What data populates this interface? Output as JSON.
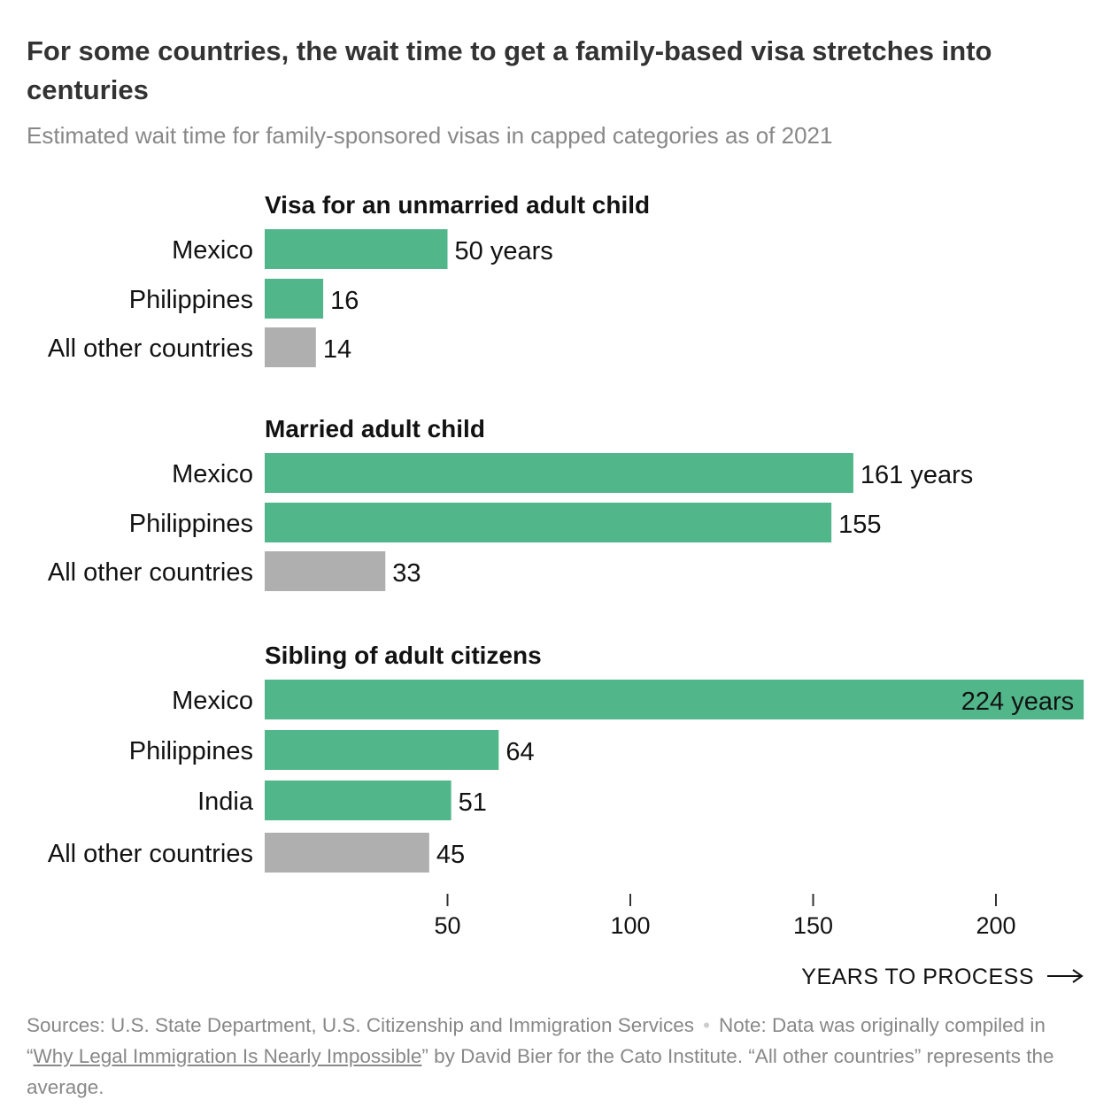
{
  "title": "For some countries, the wait time to get a family-based visa stretches into centuries",
  "subtitle": "Estimated wait time for family-sponsored visas in capped categories as of 2021",
  "chart_data": {
    "type": "bar",
    "orientation": "horizontal",
    "xlabel": "YEARS TO PROCESS",
    "xlim": [
      0,
      224
    ],
    "xticks": [
      50,
      100,
      150,
      200
    ],
    "unit_suffix": " years",
    "colors": {
      "country": "#52b68b",
      "average": "#afafaf"
    },
    "groups": [
      {
        "name": "Visa for an unmarried adult child",
        "bars": [
          {
            "label": "Mexico",
            "value": 50,
            "kind": "country",
            "value_label": "50 years"
          },
          {
            "label": "Philippines",
            "value": 16,
            "kind": "country",
            "value_label": "16"
          },
          {
            "label": "All other countries",
            "value": 14,
            "kind": "average",
            "value_label": "14"
          }
        ]
      },
      {
        "name": "Married adult child",
        "bars": [
          {
            "label": "Mexico",
            "value": 161,
            "kind": "country",
            "value_label": "161 years"
          },
          {
            "label": "Philippines",
            "value": 155,
            "kind": "country",
            "value_label": "155"
          },
          {
            "label": "All other countries",
            "value": 33,
            "kind": "average",
            "value_label": "33"
          }
        ]
      },
      {
        "name": "Sibling of adult citizens",
        "bars": [
          {
            "label": "Mexico",
            "value": 224,
            "kind": "country",
            "value_label": "224 years"
          },
          {
            "label": "Philippines",
            "value": 64,
            "kind": "country",
            "value_label": "64"
          },
          {
            "label": "India",
            "value": 51,
            "kind": "country",
            "value_label": "51"
          },
          {
            "label": "All other countries",
            "value": 45,
            "kind": "average",
            "value_label": "45"
          }
        ]
      }
    ]
  },
  "notes": {
    "sources": "Sources: U.S. State Department, U.S. Citizenship and Immigration Services",
    "separator": "•",
    "note_prefix": "Note: Data was originally compiled in “",
    "link_text": "Why Legal Immigration Is Nearly Impossible",
    "note_suffix": "” by David Bier for the Cato Institute. “All other countries” represents the average."
  }
}
